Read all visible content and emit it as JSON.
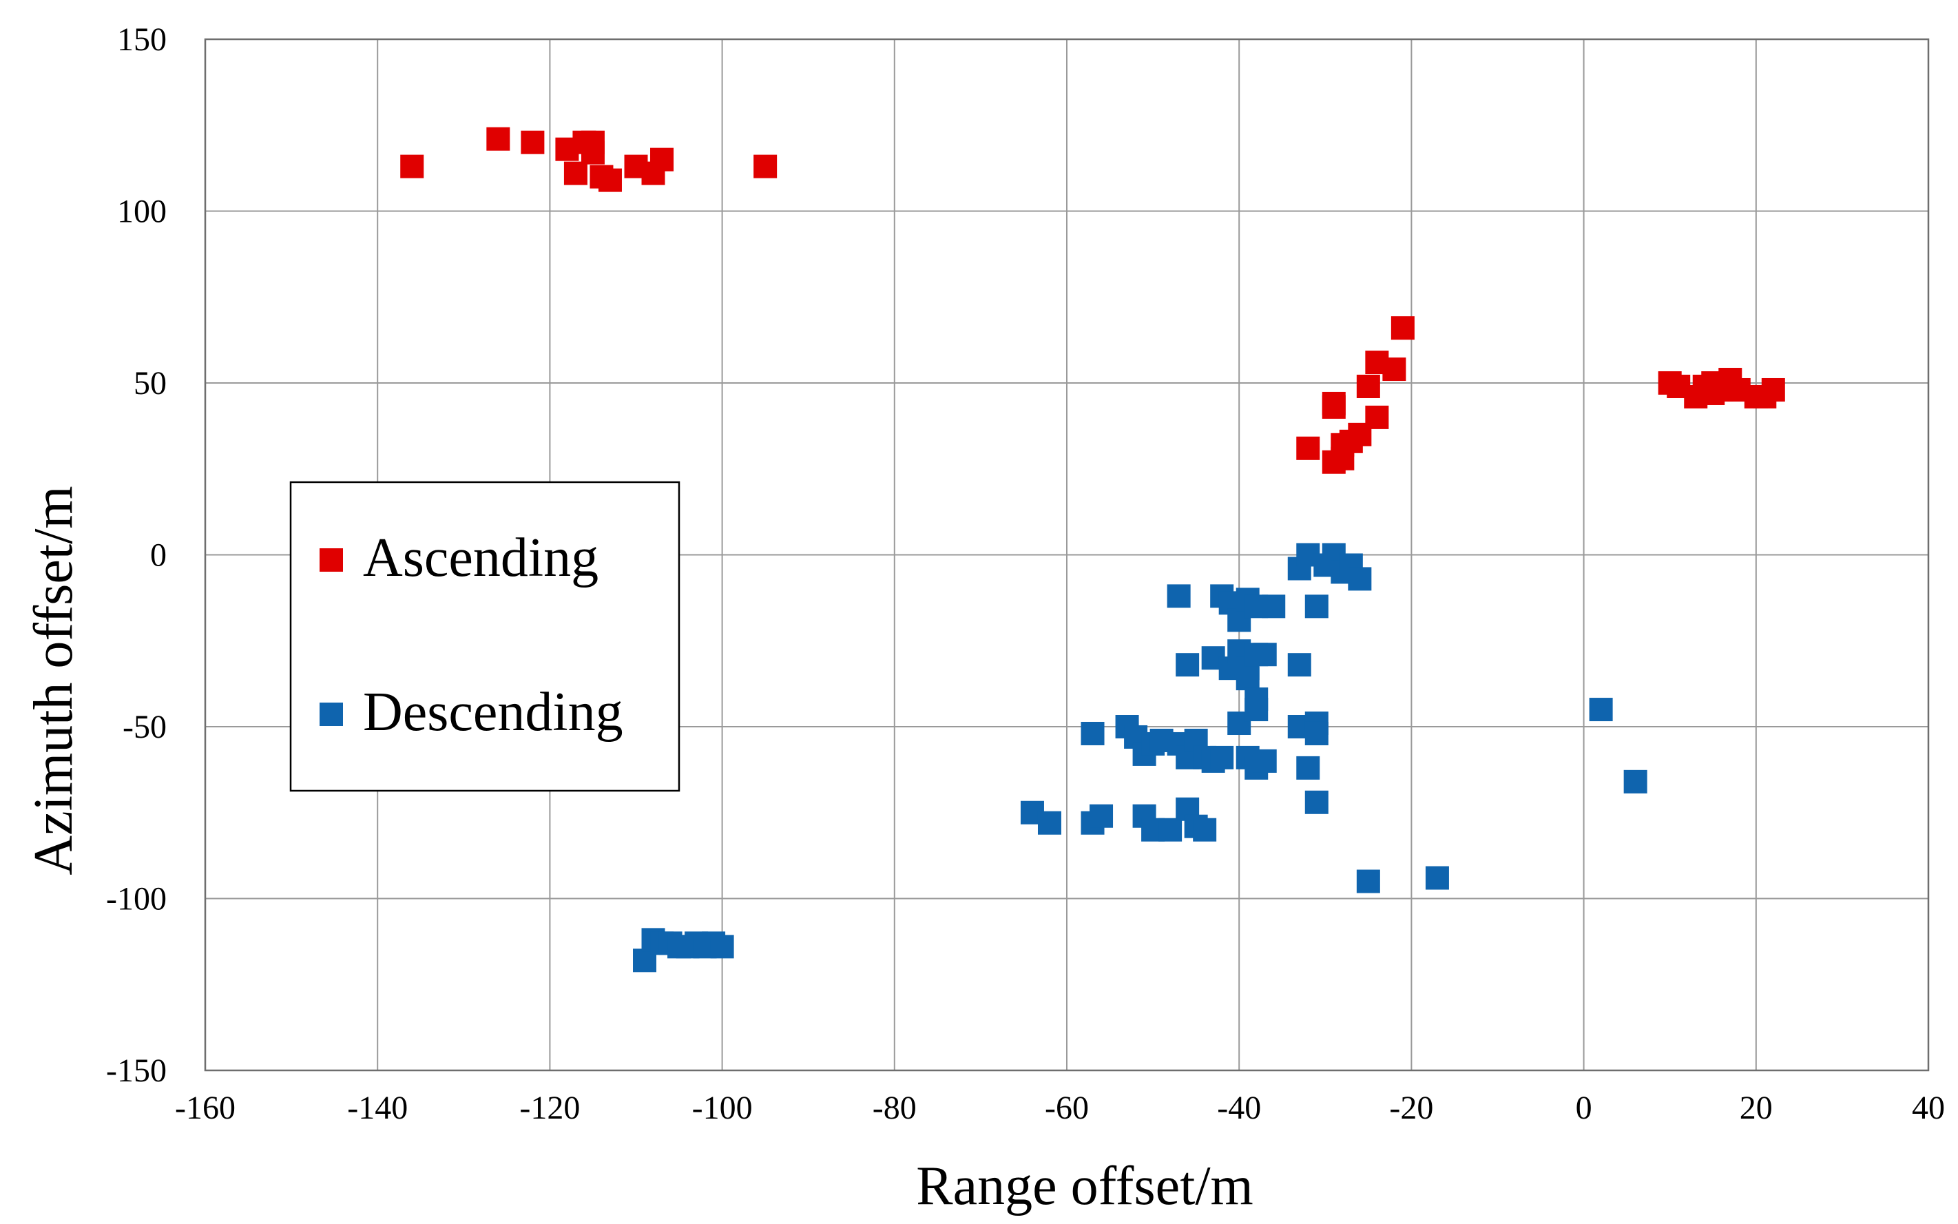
{
  "chart_data": {
    "type": "scatter",
    "title": "",
    "xlabel": "Range offset/m",
    "ylabel": "Azimuth offset/m",
    "xlim": [
      -160,
      40
    ],
    "ylim": [
      -150,
      150
    ],
    "x_ticks": [
      -160,
      -140,
      -120,
      -100,
      -80,
      -60,
      -40,
      -20,
      0,
      20,
      40
    ],
    "y_ticks": [
      -150,
      -100,
      -50,
      0,
      50,
      100,
      150
    ],
    "grid": true,
    "legend": {
      "position": "center-left",
      "entries": [
        "Ascending",
        "Descending"
      ]
    },
    "series": [
      {
        "name": "Ascending",
        "color": "#e00000",
        "marker": "square",
        "points": [
          [
            -136,
            113
          ],
          [
            -126,
            121
          ],
          [
            -122,
            120
          ],
          [
            -118,
            118
          ],
          [
            -117,
            111
          ],
          [
            -116,
            120
          ],
          [
            -115,
            120
          ],
          [
            -115,
            117
          ],
          [
            -114,
            110
          ],
          [
            -113,
            109
          ],
          [
            -110,
            113
          ],
          [
            -108,
            111
          ],
          [
            -107,
            115
          ],
          [
            -95,
            113
          ],
          [
            -32,
            31
          ],
          [
            -29,
            44
          ],
          [
            -29,
            43
          ],
          [
            -29,
            27
          ],
          [
            -28,
            28
          ],
          [
            -28,
            32
          ],
          [
            -27,
            33
          ],
          [
            -26,
            35
          ],
          [
            -25,
            49
          ],
          [
            -24,
            56
          ],
          [
            -24,
            40
          ],
          [
            -22,
            54
          ],
          [
            -21,
            66
          ],
          [
            10,
            50
          ],
          [
            11,
            49
          ],
          [
            13,
            46
          ],
          [
            14,
            49
          ],
          [
            15,
            50
          ],
          [
            15,
            47
          ],
          [
            16,
            48
          ],
          [
            17,
            51
          ],
          [
            18,
            48
          ],
          [
            20,
            46
          ],
          [
            21,
            46
          ],
          [
            22,
            48
          ]
        ]
      },
      {
        "name": "Descending",
        "color": "#0f64ae",
        "marker": "square",
        "points": [
          [
            -109,
            -118
          ],
          [
            -108,
            -112
          ],
          [
            -107,
            -113
          ],
          [
            -106,
            -113
          ],
          [
            -105,
            -114
          ],
          [
            -104,
            -114
          ],
          [
            -103,
            -113
          ],
          [
            -102,
            -114
          ],
          [
            -101,
            -113
          ],
          [
            -100,
            -114
          ],
          [
            -64,
            -75
          ],
          [
            -62,
            -78
          ],
          [
            -57,
            -78
          ],
          [
            -56,
            -76
          ],
          [
            -57,
            -52
          ],
          [
            -53,
            -50
          ],
          [
            -52,
            -53
          ],
          [
            -51,
            -76
          ],
          [
            -51,
            -58
          ],
          [
            -50,
            -55
          ],
          [
            -50,
            -80
          ],
          [
            -49,
            -54
          ],
          [
            -48,
            -80
          ],
          [
            -47,
            -12
          ],
          [
            -47,
            -55
          ],
          [
            -46,
            -32
          ],
          [
            -46,
            -59
          ],
          [
            -46,
            -74
          ],
          [
            -45,
            -54
          ],
          [
            -45,
            -79
          ],
          [
            -44,
            -59
          ],
          [
            -44,
            -80
          ],
          [
            -43,
            -30
          ],
          [
            -43,
            -60
          ],
          [
            -42,
            -12
          ],
          [
            -42,
            -59
          ],
          [
            -41,
            -33
          ],
          [
            -41,
            -14
          ],
          [
            -40,
            -19
          ],
          [
            -40,
            -49
          ],
          [
            -40,
            -28
          ],
          [
            -39,
            -13
          ],
          [
            -39,
            -59
          ],
          [
            -39,
            -33
          ],
          [
            -39,
            -36
          ],
          [
            -38,
            -29
          ],
          [
            -38,
            -42
          ],
          [
            -38,
            -45
          ],
          [
            -38,
            -62
          ],
          [
            -38,
            -15
          ],
          [
            -37,
            -29
          ],
          [
            -37,
            -60
          ],
          [
            -36,
            -15
          ],
          [
            -33,
            -4
          ],
          [
            -33,
            -50
          ],
          [
            -33,
            -32
          ],
          [
            -32,
            -62
          ],
          [
            -32,
            0
          ],
          [
            -31,
            -49
          ],
          [
            -31,
            -72
          ],
          [
            -31,
            -15
          ],
          [
            -31,
            -52
          ],
          [
            -30,
            -3
          ],
          [
            -29,
            0
          ],
          [
            -28,
            -5
          ],
          [
            -27,
            -3
          ],
          [
            -26,
            -7
          ],
          [
            -25,
            -95
          ],
          [
            -17,
            -94
          ],
          [
            2,
            -45
          ],
          [
            6,
            -66
          ]
        ]
      }
    ]
  }
}
